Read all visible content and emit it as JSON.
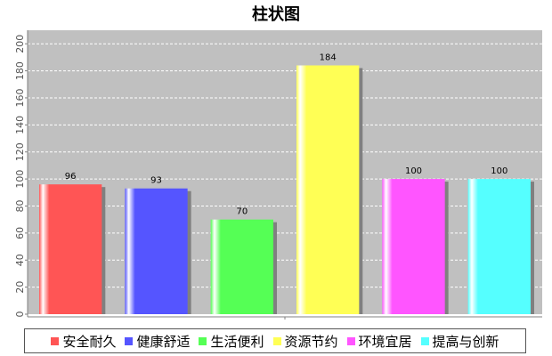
{
  "chart_data": {
    "type": "bar",
    "title": "柱状图",
    "categories": [
      "安全耐久",
      "健康舒适",
      "生活便利",
      "资源节约",
      "环境宜居",
      "提高与创新"
    ],
    "values": [
      96,
      93,
      70,
      184,
      100,
      100
    ],
    "colors": [
      "#ff5555",
      "#5555ff",
      "#55ff55",
      "#ffff55",
      "#ff55ff",
      "#55ffff"
    ],
    "ylim": [
      0,
      210
    ],
    "yticks": [
      0,
      20,
      40,
      60,
      80,
      100,
      120,
      140,
      160,
      180,
      200
    ],
    "grid": true,
    "plot_background": "#c0c0c0",
    "legend_position": "bottom"
  }
}
